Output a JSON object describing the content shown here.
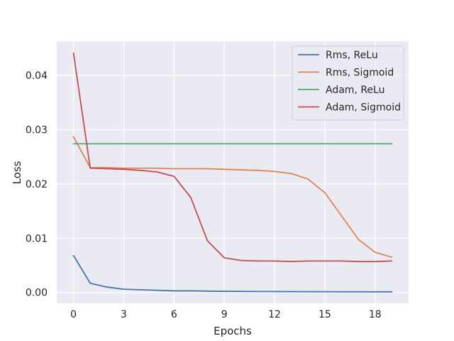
{
  "chart_data": {
    "type": "line",
    "xlabel": "Epochs",
    "ylabel": "Loss",
    "xlim": [
      -1,
      20
    ],
    "ylim": [
      -0.002,
      0.0463
    ],
    "xticks": [
      0,
      3,
      6,
      9,
      12,
      15,
      18
    ],
    "xtick_labels": [
      "0",
      "3",
      "6",
      "9",
      "12",
      "15",
      "18"
    ],
    "yticks": [
      0.0,
      0.01,
      0.02,
      0.03,
      0.04
    ],
    "ytick_labels": [
      "0.00",
      "0.01",
      "0.02",
      "0.03",
      "0.04"
    ],
    "grid": true,
    "legend_position": "top-right",
    "x": [
      0,
      1,
      2,
      3,
      4,
      5,
      6,
      7,
      8,
      9,
      10,
      11,
      12,
      13,
      14,
      15,
      16,
      17,
      18,
      19
    ],
    "series": [
      {
        "name": "Rms, ReLu",
        "color": "#4c72b0",
        "values": [
          0.0068,
          0.0017,
          0.001,
          0.0006,
          0.0005,
          0.0004,
          0.0003,
          0.0003,
          0.00025,
          0.00022,
          0.0002,
          0.00018,
          0.00017,
          0.00016,
          0.00015,
          0.00014,
          0.00013,
          0.00013,
          0.00012,
          0.00012
        ]
      },
      {
        "name": "Rms, Sigmoid",
        "color": "#dd8452",
        "values": [
          0.0287,
          0.023,
          0.023,
          0.0229,
          0.0229,
          0.0229,
          0.0228,
          0.0228,
          0.0228,
          0.0227,
          0.0226,
          0.0225,
          0.0223,
          0.0219,
          0.0209,
          0.0184,
          0.0141,
          0.0098,
          0.0074,
          0.0065
        ]
      },
      {
        "name": "Adam, ReLu",
        "color": "#55a868",
        "values": [
          0.0274,
          0.0274,
          0.0274,
          0.0274,
          0.0274,
          0.0274,
          0.0274,
          0.0274,
          0.0274,
          0.0274,
          0.0274,
          0.0274,
          0.0274,
          0.0274,
          0.0274,
          0.0274,
          0.0274,
          0.0274,
          0.0274,
          0.0274
        ]
      },
      {
        "name": "Adam, Sigmoid",
        "color": "#c44e52",
        "values": [
          0.0441,
          0.0229,
          0.0228,
          0.0227,
          0.0225,
          0.0222,
          0.0214,
          0.0175,
          0.0095,
          0.0064,
          0.0059,
          0.0058,
          0.0058,
          0.0057,
          0.0058,
          0.0058,
          0.0058,
          0.0057,
          0.0057,
          0.0058
        ]
      }
    ]
  },
  "style": {
    "plot_background": "#eaeaf2",
    "grid_color": "#ffffff",
    "text_color": "#262626",
    "legend_background": "#eaeaf2",
    "legend_border": "#cccccc"
  }
}
